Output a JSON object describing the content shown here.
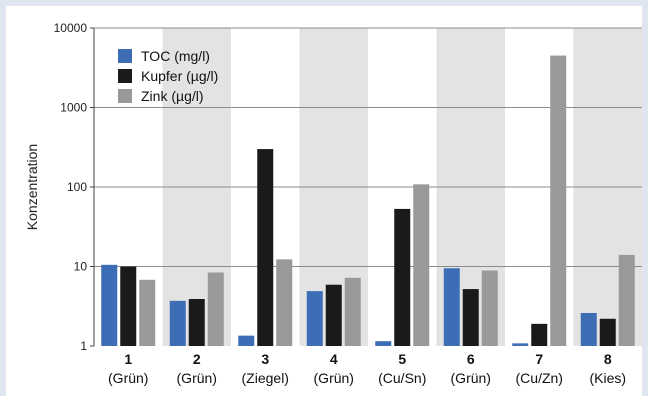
{
  "colors": {
    "page_background": "#dfe6f1",
    "plot_background": "#ffffff",
    "band_shade": "#e3e3e3",
    "toc": "#3c6db5",
    "kupfer": "#1a1a1a",
    "zink": "#999999"
  },
  "chart_data": {
    "type": "bar",
    "title": "",
    "xlabel": "",
    "ylabel": "Konzentration",
    "yscale": "log",
    "ylim": [
      1,
      10000
    ],
    "y_ticks": [
      1,
      10,
      100,
      1000,
      10000
    ],
    "y_tick_labels": [
      "1",
      "10",
      "100",
      "1000",
      "10000"
    ],
    "grid": "horizontal at decades",
    "shaded_categories": [
      2,
      4,
      6,
      8
    ],
    "legend_position": "top-left",
    "categories": [
      {
        "number": "1",
        "label": "(Grün)"
      },
      {
        "number": "2",
        "label": "(Grün)"
      },
      {
        "number": "3",
        "label": "(Ziegel)"
      },
      {
        "number": "4",
        "label": "(Grün)"
      },
      {
        "number": "5",
        "label": "(Cu/Sn)"
      },
      {
        "number": "6",
        "label": "(Grün)"
      },
      {
        "number": "7",
        "label": "(Cu/Zn)"
      },
      {
        "number": "8",
        "label": "(Kies)"
      }
    ],
    "series": [
      {
        "name": "TOC (mg/l)",
        "color": "#3c6db5",
        "values": [
          10.5,
          3.7,
          1.35,
          4.9,
          1.15,
          9.5,
          1.08,
          2.6
        ]
      },
      {
        "name": "Kupfer (µg/l)",
        "color": "#1a1a1a",
        "values": [
          10,
          3.9,
          300,
          5.9,
          53,
          5.2,
          1.9,
          2.2
        ]
      },
      {
        "name": "Zink (µg/l)",
        "color": "#999999",
        "values": [
          6.8,
          8.4,
          12.3,
          7.2,
          108,
          8.9,
          4500,
          14
        ]
      }
    ]
  }
}
